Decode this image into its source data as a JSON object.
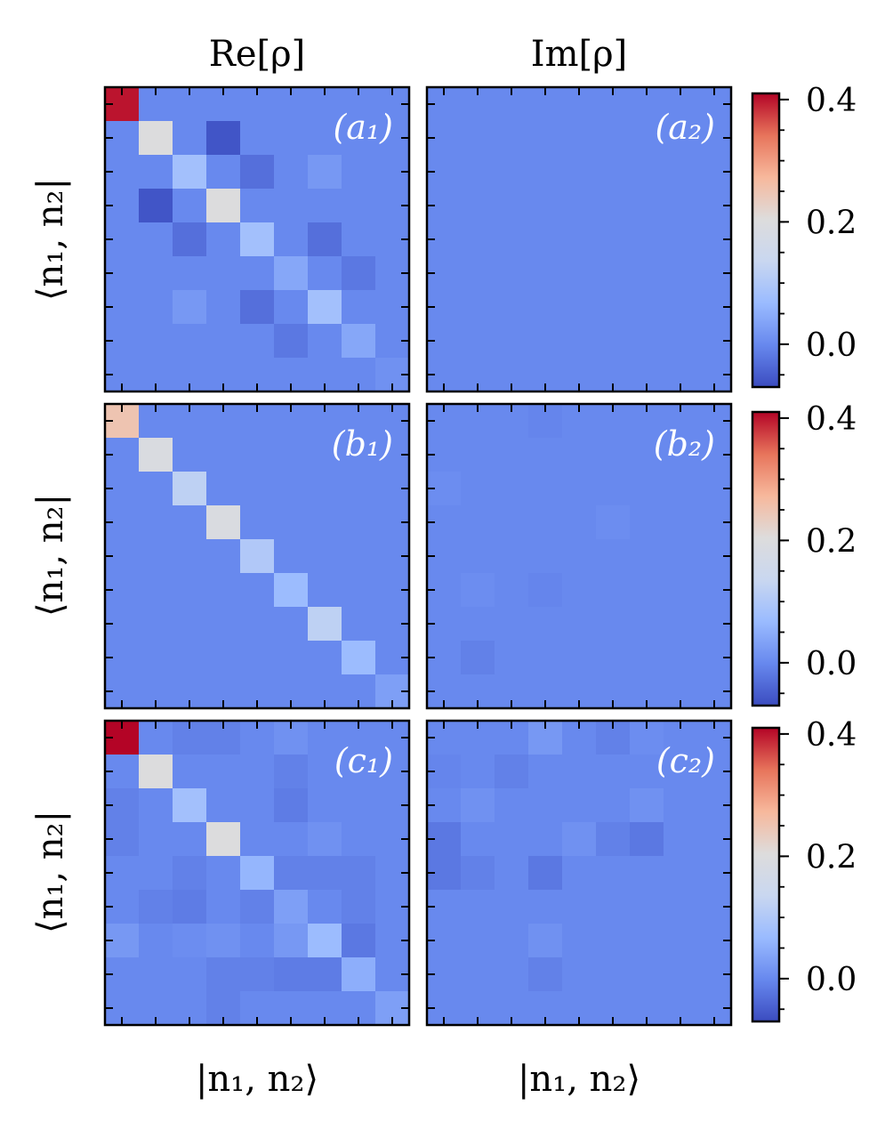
{
  "figure": {
    "column_titles": [
      "Re[ρ]",
      "Im[ρ]"
    ],
    "row_ylabel": "⟨n₁, n₂|",
    "xlabel": "|n₁, n₂⟩"
  },
  "colormap": {
    "name": "coolwarm",
    "stops": [
      "#3b4cc0",
      "#6788ee",
      "#9abbff",
      "#c9d7f0",
      "#dddcdc",
      "#f7b89c",
      "#e7745b",
      "#b40426"
    ],
    "vmin": -0.07,
    "vmax": 0.41
  },
  "colorbar": {
    "ticks": [
      0.0,
      0.2,
      0.4
    ],
    "tick_labels": [
      "0.0",
      "0.2",
      "0.4"
    ]
  },
  "chart_data": [
    {
      "type": "heatmap",
      "panel": "a1",
      "label": "(a₁)",
      "size": 9,
      "values": [
        [
          0.4,
          0.0,
          0.0,
          0.0,
          0.0,
          0.0,
          0.0,
          0.0,
          0.0
        ],
        [
          0.0,
          0.2,
          0.0,
          -0.06,
          0.0,
          0.0,
          0.0,
          0.0,
          0.0
        ],
        [
          0.0,
          0.0,
          0.08,
          0.0,
          -0.03,
          0.0,
          0.02,
          0.0,
          0.0
        ],
        [
          0.0,
          -0.06,
          0.0,
          0.2,
          0.0,
          0.0,
          0.0,
          0.0,
          0.0
        ],
        [
          0.0,
          0.0,
          -0.03,
          0.0,
          0.08,
          0.0,
          -0.03,
          0.0,
          0.0
        ],
        [
          0.0,
          0.0,
          0.0,
          0.0,
          0.0,
          0.04,
          0.0,
          -0.02,
          0.0
        ],
        [
          0.0,
          0.0,
          0.02,
          0.0,
          -0.03,
          0.0,
          0.08,
          0.0,
          0.0
        ],
        [
          0.0,
          0.0,
          0.0,
          0.0,
          0.0,
          -0.02,
          0.0,
          0.04,
          0.0
        ],
        [
          0.0,
          0.0,
          0.0,
          0.0,
          0.0,
          0.0,
          0.0,
          0.0,
          0.01
        ]
      ]
    },
    {
      "type": "heatmap",
      "panel": "a2",
      "label": "(a₂)",
      "size": 9,
      "values": [
        [
          0.0,
          0.0,
          0.0,
          0.0,
          0.0,
          0.0,
          0.0,
          0.0,
          0.0
        ],
        [
          0.0,
          0.0,
          0.0,
          0.0,
          0.0,
          0.0,
          0.0,
          0.0,
          0.0
        ],
        [
          0.0,
          0.0,
          0.0,
          0.0,
          0.0,
          0.0,
          0.0,
          0.0,
          0.0
        ],
        [
          0.0,
          0.0,
          0.0,
          0.0,
          0.0,
          0.0,
          0.0,
          0.0,
          0.0
        ],
        [
          0.0,
          0.0,
          0.0,
          0.0,
          0.0,
          0.0,
          0.0,
          0.0,
          0.0
        ],
        [
          0.0,
          0.0,
          0.0,
          0.0,
          0.0,
          0.0,
          0.0,
          0.0,
          0.0
        ],
        [
          0.0,
          0.0,
          0.0,
          0.0,
          0.0,
          0.0,
          0.0,
          0.0,
          0.0
        ],
        [
          0.0,
          0.0,
          0.0,
          0.0,
          0.0,
          0.0,
          0.0,
          0.0,
          0.0
        ],
        [
          0.0,
          0.0,
          0.0,
          0.0,
          0.0,
          0.0,
          0.0,
          0.0,
          0.0
        ]
      ]
    },
    {
      "type": "heatmap",
      "panel": "b1",
      "label": "(b₁)",
      "size": 9,
      "values": [
        [
          0.25,
          0.0,
          0.0,
          0.0,
          0.0,
          0.0,
          0.0,
          0.0,
          0.0
        ],
        [
          0.0,
          0.19,
          0.0,
          0.0,
          0.0,
          0.0,
          0.0,
          0.0,
          0.0
        ],
        [
          0.0,
          0.0,
          0.12,
          0.0,
          0.0,
          0.0,
          0.0,
          0.0,
          0.0
        ],
        [
          0.0,
          0.0,
          0.0,
          0.19,
          0.0,
          0.0,
          0.0,
          0.0,
          0.0
        ],
        [
          0.0,
          0.0,
          0.0,
          0.0,
          0.1,
          0.0,
          0.0,
          0.0,
          0.0
        ],
        [
          0.0,
          0.0,
          0.0,
          0.0,
          0.0,
          0.07,
          0.0,
          0.0,
          0.0
        ],
        [
          0.0,
          0.0,
          0.0,
          0.0,
          0.0,
          0.0,
          0.12,
          0.0,
          0.0
        ],
        [
          0.0,
          0.0,
          0.0,
          0.0,
          0.0,
          0.0,
          0.0,
          0.07,
          0.0
        ],
        [
          0.0,
          0.0,
          0.0,
          0.0,
          0.0,
          0.0,
          0.0,
          0.0,
          0.03
        ]
      ]
    },
    {
      "type": "heatmap",
      "panel": "b2",
      "label": "(b₂)",
      "size": 9,
      "values": [
        [
          0.0,
          0.0,
          0.0,
          -0.005,
          0.0,
          0.0,
          0.0,
          0.0,
          0.0
        ],
        [
          0.0,
          0.0,
          0.0,
          0.0,
          0.0,
          0.0,
          0.0,
          0.0,
          0.0
        ],
        [
          0.005,
          0.0,
          0.0,
          0.0,
          0.0,
          0.0,
          0.0,
          0.0,
          0.0
        ],
        [
          0.0,
          0.0,
          0.0,
          0.0,
          0.0,
          0.005,
          0.0,
          0.0,
          0.0
        ],
        [
          0.0,
          0.0,
          0.0,
          0.0,
          0.0,
          0.0,
          0.0,
          0.0,
          0.0
        ],
        [
          0.0,
          0.005,
          0.0,
          -0.005,
          0.0,
          0.0,
          0.0,
          0.0,
          0.0
        ],
        [
          0.0,
          0.0,
          0.0,
          0.0,
          0.0,
          0.0,
          0.0,
          0.0,
          0.0
        ],
        [
          0.0,
          -0.01,
          0.0,
          0.0,
          0.0,
          0.0,
          0.0,
          0.0,
          0.0
        ],
        [
          0.0,
          0.0,
          0.0,
          0.0,
          0.0,
          0.0,
          0.0,
          0.0,
          0.0
        ]
      ]
    },
    {
      "type": "heatmap",
      "panel": "c1",
      "label": "(c₁)",
      "size": 9,
      "values": [
        [
          0.41,
          0.0,
          -0.01,
          -0.01,
          0.0,
          0.01,
          0.0,
          0.0,
          0.0
        ],
        [
          0.0,
          0.2,
          0.0,
          0.0,
          0.0,
          -0.01,
          0.0,
          0.0,
          0.0
        ],
        [
          -0.01,
          0.0,
          0.08,
          0.0,
          0.0,
          -0.015,
          0.0,
          0.0,
          0.0
        ],
        [
          -0.01,
          0.0,
          0.0,
          0.2,
          0.0,
          0.0,
          0.01,
          0.0,
          0.0
        ],
        [
          0.0,
          0.0,
          -0.01,
          0.0,
          0.06,
          -0.01,
          -0.01,
          -0.01,
          0.0
        ],
        [
          0.0,
          -0.01,
          -0.015,
          0.0,
          -0.01,
          0.03,
          0.0,
          -0.01,
          0.0
        ],
        [
          0.02,
          0.0,
          0.005,
          0.01,
          0.0,
          0.02,
          0.07,
          -0.02,
          0.0
        ],
        [
          0.0,
          0.0,
          0.0,
          -0.01,
          -0.01,
          -0.015,
          -0.015,
          0.05,
          0.0
        ],
        [
          0.0,
          0.0,
          0.0,
          -0.01,
          0.0,
          0.0,
          0.0,
          0.0,
          0.03
        ]
      ]
    },
    {
      "type": "heatmap",
      "panel": "c2",
      "label": "(c₂)",
      "size": 9,
      "values": [
        [
          0.0,
          0.0,
          0.0,
          0.02,
          0.0,
          -0.01,
          0.005,
          0.0,
          0.0
        ],
        [
          -0.005,
          0.0,
          -0.01,
          0.0,
          0.0,
          0.0,
          0.0,
          0.0,
          0.0
        ],
        [
          0.0,
          0.01,
          0.0,
          0.0,
          0.0,
          0.0,
          0.01,
          0.0,
          0.0
        ],
        [
          -0.02,
          0.0,
          0.0,
          0.0,
          0.01,
          -0.01,
          -0.02,
          0.0,
          0.0
        ],
        [
          -0.02,
          -0.01,
          0.0,
          -0.02,
          0.0,
          0.0,
          0.0,
          0.0,
          0.0
        ],
        [
          0.0,
          0.0,
          0.0,
          0.0,
          0.0,
          0.0,
          0.0,
          0.0,
          0.0
        ],
        [
          0.0,
          0.0,
          0.0,
          0.01,
          0.0,
          0.0,
          0.0,
          0.0,
          0.0
        ],
        [
          0.0,
          0.0,
          0.0,
          -0.01,
          0.0,
          0.0,
          0.0,
          0.0,
          0.0
        ],
        [
          0.0,
          0.0,
          0.0,
          0.0,
          0.0,
          0.0,
          0.0,
          0.0,
          0.0
        ]
      ]
    }
  ]
}
